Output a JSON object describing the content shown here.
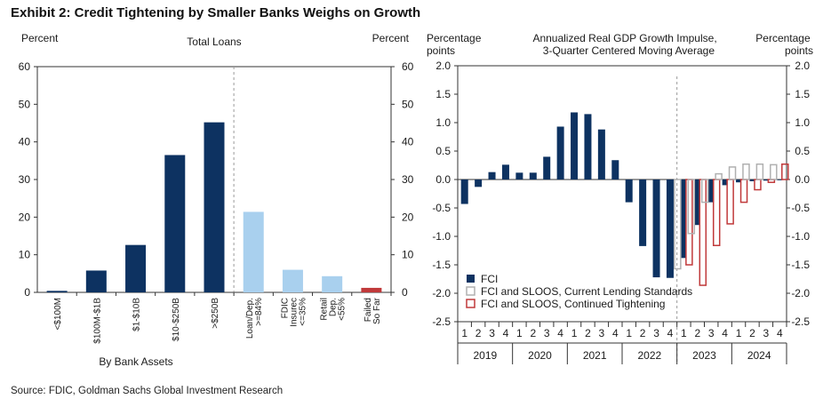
{
  "exhibit_title": "Exhibit 2: Credit Tightening by Smaller Banks Weighs on Growth",
  "source": "Source: FDIC, Goldman Sachs Global Investment Research",
  "colors": {
    "navy": "#0d3261",
    "light_blue": "#a9d0ee",
    "red": "#c0393a",
    "gray": "#b0b0b0"
  },
  "chart_data": [
    {
      "type": "bar",
      "title": "Total Loans",
      "ylabel_left": "Percent",
      "ylabel_right": "Percent",
      "ylim": [
        0,
        60
      ],
      "yticks": [
        0,
        10,
        20,
        30,
        40,
        50,
        60
      ],
      "xlabel_group": "By Bank Assets",
      "categories": [
        "<$100M",
        "$100M-$1B",
        "$1-$10B",
        "$10-$250B",
        ">$250B",
        "Loan/Dep. >=84%",
        "FDIC Insurec <=35%",
        "Retail Dep. <55%",
        "Failed So Far"
      ],
      "category_lines": [
        [
          "<$100M"
        ],
        [
          "$100M-$1B"
        ],
        [
          "$1-$10B"
        ],
        [
          "$10-$250B"
        ],
        [
          ">$250B"
        ],
        [
          "Loan/Dep.",
          ">=84%"
        ],
        [
          "FDIC",
          "Insurec",
          "<=35%"
        ],
        [
          "Retail",
          "Dep.",
          "<55%"
        ],
        [
          "Failed",
          "So Far"
        ]
      ],
      "values": [
        0.4,
        5.8,
        12.6,
        36.5,
        45.2,
        21.4,
        6.0,
        4.3,
        1.2
      ],
      "bar_colors": [
        "#0d3261",
        "#0d3261",
        "#0d3261",
        "#0d3261",
        "#0d3261",
        "#a9d0ee",
        "#a9d0ee",
        "#a9d0ee",
        "#c0393a"
      ],
      "grid": false
    },
    {
      "type": "bar",
      "title_lines": [
        "Annualized  Real  GDP  Growth  Impulse,",
        "3-Quarter  Centered  Moving  Average"
      ],
      "ylabel_left": "Percentage points",
      "ylabel_right": "Percentage points",
      "ylim": [
        -2.5,
        2.0
      ],
      "yticks": [
        "-2.5",
        "-2.0",
        "-1.5",
        "-1.0",
        "-0.5",
        "0.0",
        "0.5",
        "1.0",
        "1.5",
        "2.0"
      ],
      "quarters": [
        "1",
        "2",
        "3",
        "4",
        "1",
        "2",
        "3",
        "4",
        "1",
        "2",
        "3",
        "4",
        "1",
        "2",
        "3",
        "4",
        "1",
        "2",
        "3",
        "4",
        "1",
        "2",
        "3",
        "4"
      ],
      "years": [
        "2019",
        "2020",
        "2021",
        "2022",
        "2023",
        "2024"
      ],
      "series": [
        {
          "name": "FCI",
          "values": [
            -0.43,
            -0.13,
            0.13,
            0.26,
            0.12,
            0.12,
            0.4,
            0.93,
            1.18,
            1.15,
            0.88,
            0.34,
            -0.4,
            -1.17,
            -1.72,
            -1.73,
            -1.38,
            -0.8,
            -0.4,
            -0.1,
            -0.05,
            -0.03,
            -0.02,
            -0.01
          ]
        },
        {
          "name": "FCI and SLOOS, Current Lending Standards",
          "values": [
            null,
            null,
            null,
            null,
            null,
            null,
            null,
            null,
            null,
            null,
            null,
            null,
            null,
            null,
            null,
            null,
            -1.57,
            -0.95,
            -0.4,
            0.1,
            0.22,
            0.27,
            0.27,
            0.26
          ]
        },
        {
          "name": "FCI and SLOOS, Continued Tightening",
          "values": [
            null,
            null,
            null,
            null,
            null,
            null,
            null,
            null,
            null,
            null,
            null,
            null,
            null,
            null,
            null,
            null,
            -1.5,
            -1.86,
            -1.16,
            -0.78,
            -0.4,
            -0.18,
            -0.05,
            0.27
          ]
        }
      ],
      "legend_position": "bottom-left",
      "grid": false
    }
  ]
}
